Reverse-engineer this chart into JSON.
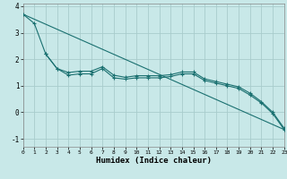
{
  "xlabel": "Humidex (Indice chaleur)",
  "bg_color": "#c8e8e8",
  "grid_color": "#a8cccc",
  "line_color": "#1a7070",
  "xlim": [
    0,
    23
  ],
  "ylim": [
    -1.3,
    4.1
  ],
  "yticks": [
    -1,
    0,
    1,
    2,
    3,
    4
  ],
  "xticks": [
    0,
    1,
    2,
    3,
    4,
    5,
    6,
    7,
    8,
    9,
    10,
    11,
    12,
    13,
    14,
    15,
    16,
    17,
    18,
    19,
    20,
    21,
    22,
    23
  ],
  "series1_x": [
    0,
    1,
    2,
    3,
    4,
    5,
    6,
    7,
    8,
    9,
    10,
    11,
    12,
    13,
    14,
    15,
    16,
    17,
    18,
    19,
    20,
    21,
    22,
    23
  ],
  "series1_y": [
    3.7,
    3.35,
    2.2,
    1.65,
    1.4,
    1.45,
    1.45,
    1.65,
    1.3,
    1.25,
    1.3,
    1.3,
    1.3,
    1.35,
    1.45,
    1.45,
    1.2,
    1.1,
    1.0,
    0.9,
    0.65,
    0.35,
    -0.05,
    -0.65
  ],
  "series2_x": [
    2,
    3,
    4,
    5,
    6,
    7,
    8,
    9,
    10,
    11,
    12,
    13,
    14,
    15,
    16,
    17,
    18,
    19,
    20,
    21,
    22,
    23
  ],
  "series2_y": [
    2.2,
    1.65,
    1.5,
    1.55,
    1.55,
    1.72,
    1.4,
    1.32,
    1.38,
    1.38,
    1.38,
    1.42,
    1.52,
    1.52,
    1.26,
    1.16,
    1.06,
    0.96,
    0.72,
    0.4,
    0.0,
    -0.6
  ],
  "series3_x": [
    0,
    23
  ],
  "series3_y": [
    3.7,
    -0.65
  ]
}
